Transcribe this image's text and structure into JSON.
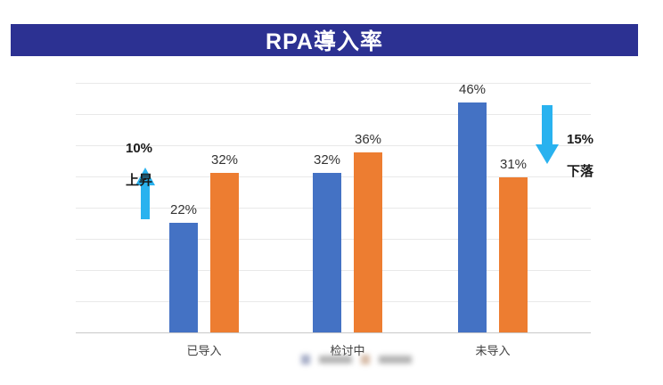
{
  "title": "RPA導入率",
  "chart_data": {
    "type": "bar",
    "title": "RPA導入率",
    "categories": [
      "已导入",
      "检讨中",
      "未导入"
    ],
    "series": [
      {
        "name": "blue-series",
        "color": "#4472c4",
        "values": [
          22,
          32,
          46
        ]
      },
      {
        "name": "orange-series",
        "color": "#ed7d31",
        "values": [
          32,
          36,
          31
        ]
      }
    ],
    "value_suffix": "%",
    "ylim": [
      0,
      50
    ],
    "grid": true,
    "legend": {
      "visible": true,
      "note": "blurred/illegible",
      "items": [
        "",
        ""
      ]
    },
    "annotations": [
      {
        "line1": "10%",
        "line2": "上昇",
        "direction": "up",
        "color": "#29b2ef"
      },
      {
        "line1": "15%",
        "line2": "下落",
        "direction": "down",
        "color": "#29b2ef"
      }
    ]
  },
  "colors": {
    "title_bg": "#2c3192",
    "title_text": "#ffffff",
    "bar_blue": "#4472c4",
    "bar_orange": "#ed7d31",
    "arrow": "#29b2ef",
    "grid": "#e9e9e9",
    "label": "#404040"
  }
}
